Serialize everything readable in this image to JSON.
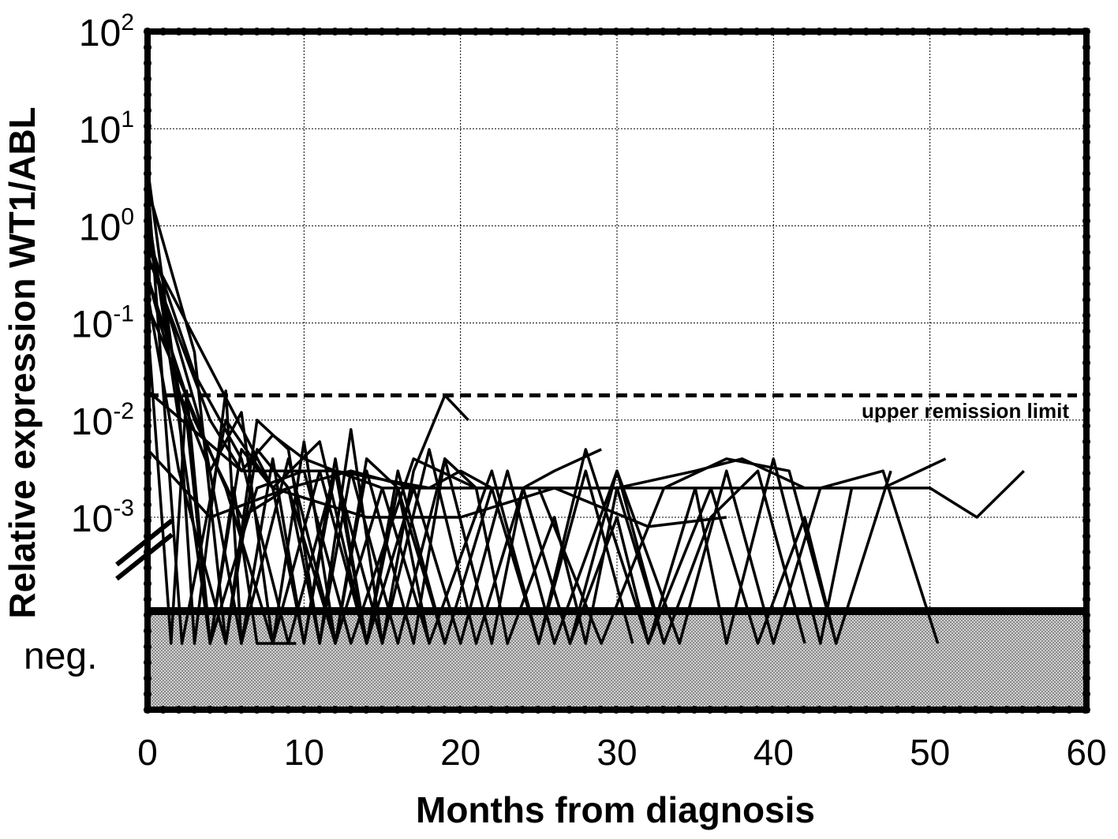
{
  "chart_data": {
    "type": "line",
    "title": "",
    "xlabel": "Months from diagnosis",
    "ylabel": "Relative expression WT1/ABL",
    "x_ticks": [
      "0",
      "10",
      "20",
      "30",
      "40",
      "50",
      "60"
    ],
    "y_ticks": [
      {
        "base": "10",
        "exp": "2",
        "value": 100
      },
      {
        "base": "10",
        "exp": "1",
        "value": 10
      },
      {
        "base": "10",
        "exp": "0",
        "value": 1
      },
      {
        "base": "10",
        "exp": "-1",
        "value": 0.1
      },
      {
        "base": "10",
        "exp": "-2",
        "value": 0.01
      },
      {
        "base": "10",
        "exp": "-3",
        "value": 0.001
      }
    ],
    "xlim": [
      0,
      60
    ],
    "ylim": [
      0.0001,
      100
    ],
    "y_scale": "log",
    "grid": true,
    "negative_band_label": "neg.",
    "threshold": {
      "value": 0.018,
      "label": "upper remission limit",
      "style": "dashed"
    },
    "series": [
      {
        "x": [
          0,
          2.5,
          4,
          5.5,
          7,
          9.5
        ],
        "y": [
          "0.3",
          "0.01",
          "neg",
          "0.002",
          "neg",
          "neg"
        ]
      },
      {
        "x": [
          0,
          2,
          3,
          5,
          6,
          8,
          10,
          12,
          14,
          16,
          19
        ],
        "y": [
          "4",
          "0.015",
          "neg",
          "0.02",
          "neg",
          "0.004",
          "neg",
          "0.003",
          "neg",
          "0.002",
          "neg"
        ]
      },
      {
        "x": [
          0,
          3,
          5,
          7,
          9,
          11,
          13,
          15,
          17,
          19,
          20.5
        ],
        "y": [
          "2.5",
          "0.05",
          "neg",
          "0.01",
          "0.005",
          "neg",
          "0.008",
          "neg",
          "0.003",
          "0.018",
          "0.01"
        ]
      },
      {
        "x": [
          0,
          2,
          4,
          6,
          8,
          10,
          12,
          14,
          16,
          18
        ],
        "y": [
          "1.2",
          "0.02",
          "0.003",
          "0.012",
          "neg",
          "0.006",
          "neg",
          "0.004",
          "0.002",
          "neg"
        ]
      },
      {
        "x": [
          0,
          3,
          6,
          9,
          12,
          15,
          18,
          21,
          24,
          27,
          30,
          33
        ],
        "y": [
          "0.8",
          "0.03",
          "0.004",
          "neg",
          "0.003",
          "neg",
          "0.005",
          "neg",
          "0.002",
          "neg",
          "0.003",
          "neg"
        ]
      },
      {
        "x": [
          0,
          1.5,
          2.5,
          4,
          6,
          8,
          10,
          12,
          14
        ],
        "y": [
          "0.1",
          "neg",
          "0.02",
          "neg",
          "0.005",
          "0.002",
          "neg",
          "0.004",
          "neg"
        ]
      },
      {
        "x": [
          0,
          4,
          6,
          8,
          10,
          12,
          15,
          18,
          20,
          22,
          24,
          26,
          29
        ],
        "y": [
          "0.5",
          "0.01",
          "0.003",
          "0.007",
          "0.004",
          "0.003",
          "0.002",
          "0.002",
          "0.003",
          "0.002",
          "0.002",
          "0.003",
          "0.005"
        ]
      },
      {
        "x": [
          0,
          3,
          6,
          9,
          11,
          13,
          16,
          19,
          21,
          23,
          26,
          28,
          30,
          33,
          36,
          39,
          42
        ],
        "y": [
          "0.3",
          "0.01",
          "0.001",
          "0.002",
          "neg",
          "0.003",
          "neg",
          "0.004",
          "0.002",
          "neg",
          "0.001",
          "neg",
          "0.002",
          "neg",
          "0.001",
          "0.003",
          "neg"
        ]
      },
      {
        "x": [
          0,
          2,
          5,
          7,
          9,
          12,
          14,
          17,
          19,
          22,
          24,
          27,
          30,
          32,
          35,
          37,
          40,
          43,
          45
        ],
        "y": [
          "0.2",
          "0.003",
          "neg",
          "0.005",
          "0.002",
          "neg",
          "0.003",
          "neg",
          "0.004",
          "neg",
          "0.002",
          "neg",
          "0.001",
          "neg",
          "0.002",
          "neg",
          "0.004",
          "neg",
          "0.002"
        ]
      },
      {
        "x": [
          0,
          5,
          8,
          11,
          14,
          17,
          20,
          23,
          26,
          30,
          34,
          37,
          40,
          43,
          47,
          50.5
        ],
        "y": [
          "0.15",
          "0.002",
          "neg",
          "0.003",
          "neg",
          "0.002",
          "neg",
          "0.003",
          "neg",
          "0.003",
          "neg",
          "0.003",
          "neg",
          "0.002",
          "0.003",
          "neg"
        ]
      },
      {
        "x": [
          0,
          2,
          4,
          7,
          10,
          13,
          17,
          21,
          25,
          29,
          33,
          37,
          41,
          44,
          47.5
        ],
        "y": [
          "1.5",
          "0.01",
          "neg",
          "0.002",
          "0.003",
          "neg",
          "0.004",
          "0.002",
          "0.002",
          "neg",
          "0.002",
          "0.004",
          "0.003",
          "neg",
          "0.003"
        ]
      },
      {
        "x": [
          0,
          8,
          14,
          20,
          26,
          32,
          37
        ],
        "y": [
          "0.6",
          "0.002",
          "0.001",
          "0.001",
          "0.002",
          "0.0008",
          "0.001"
        ]
      },
      {
        "x": [
          0,
          6,
          12,
          18,
          24,
          30,
          36,
          42,
          46,
          50,
          53,
          56
        ],
        "y": [
          "0.02",
          "0.003",
          "0.003",
          "0.002",
          "0.002",
          "0.002",
          "0.002",
          "0.002",
          "0.002",
          "0.002",
          "0.001",
          "0.003"
        ]
      },
      {
        "x": [
          0,
          4,
          9,
          13,
          17,
          21,
          25,
          30,
          35,
          38,
          42,
          47,
          51
        ],
        "y": [
          "0.005",
          "0.001",
          "0.002",
          "0.003",
          "0.002",
          "0.002",
          "0.002",
          "0.002",
          "0.003",
          "0.004",
          "0.002",
          "0.002",
          "0.004"
        ]
      },
      {
        "x": [
          0,
          3.5,
          6,
          9,
          12,
          15,
          18,
          22,
          25,
          28,
          32,
          36,
          39,
          42,
          44
        ],
        "y": [
          "0.7",
          "0.008",
          "neg",
          "0.004",
          "neg",
          "0.002",
          "neg",
          "0.003",
          "neg",
          "0.005",
          "neg",
          "0.002",
          "neg",
          "0.001",
          "neg"
        ]
      },
      {
        "x": [
          0,
          2.2,
          5,
          8,
          11,
          14,
          16,
          19,
          22,
          25,
          28,
          31
        ],
        "y": [
          "3",
          "neg",
          "0.01",
          "0.002",
          "0.006",
          "neg",
          "0.003",
          "neg",
          "0.002",
          "neg",
          "0.003",
          "neg"
        ]
      }
    ]
  }
}
